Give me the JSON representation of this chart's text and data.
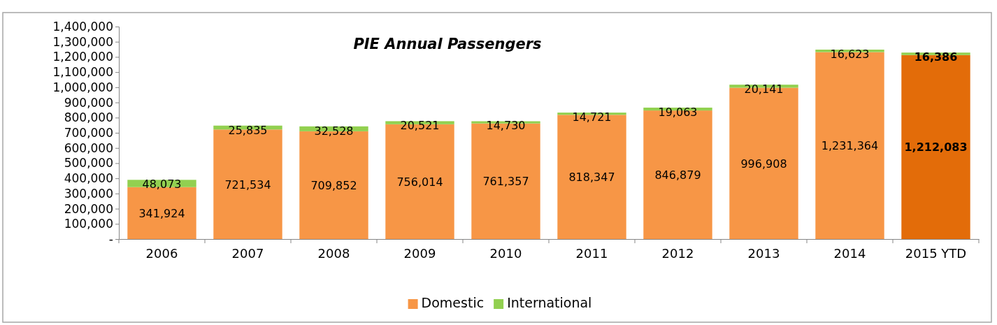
{
  "chart_data": {
    "type": "bar",
    "title": "PIE Annual Passengers",
    "categories": [
      "2006",
      "2007",
      "2008",
      "2009",
      "2010",
      "2011",
      "2012",
      "2013",
      "2014",
      "2015 YTD"
    ],
    "series": [
      {
        "name": "Domestic",
        "color": "#f79646",
        "colors": [
          "#f79646",
          "#f79646",
          "#f79646",
          "#f79646",
          "#f79646",
          "#f79646",
          "#f79646",
          "#f79646",
          "#f79646",
          "#e36c09"
        ],
        "values": [
          341924,
          721534,
          709852,
          756014,
          761357,
          818347,
          846879,
          996908,
          1231364,
          1212083
        ],
        "value_labels": [
          "341,924",
          "721,534",
          "709,852",
          "756,014",
          "761,357",
          "818,347",
          "846,879",
          "996,908",
          "1,231,364",
          "1,212,083"
        ]
      },
      {
        "name": "International",
        "color": "#92d050",
        "values": [
          48073,
          25835,
          32528,
          20521,
          14730,
          14721,
          19063,
          20141,
          16623,
          16386
        ],
        "value_labels": [
          "48,073",
          "25,835",
          "32,528",
          "20,521",
          "14,730",
          "14,721",
          "19,063",
          "20,141",
          "16,623",
          "16,386"
        ]
      }
    ],
    "stacked": true,
    "ylim": [
      0,
      1400000
    ],
    "yticks": [
      {
        "value": 0,
        "label": "-"
      },
      {
        "value": 100000,
        "label": "100,000"
      },
      {
        "value": 200000,
        "label": "200,000"
      },
      {
        "value": 300000,
        "label": "300,000"
      },
      {
        "value": 400000,
        "label": "400,000"
      },
      {
        "value": 500000,
        "label": "500,000"
      },
      {
        "value": 600000,
        "label": "600,000"
      },
      {
        "value": 700000,
        "label": "700,000"
      },
      {
        "value": 800000,
        "label": "800,000"
      },
      {
        "value": 900000,
        "label": "900,000"
      },
      {
        "value": 1000000,
        "label": "1,000,000"
      },
      {
        "value": 1100000,
        "label": "1,100,000"
      },
      {
        "value": 1200000,
        "label": "1,200,000"
      },
      {
        "value": 1300000,
        "label": "1,300,000"
      },
      {
        "value": 1400000,
        "label": "1,400,000"
      }
    ],
    "grid": false,
    "legend": "bottom"
  }
}
